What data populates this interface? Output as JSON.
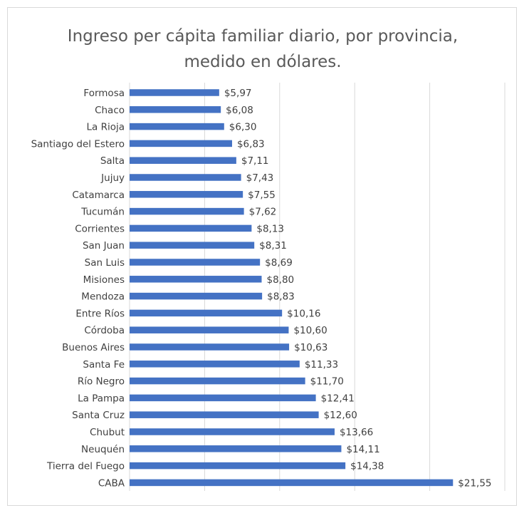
{
  "chart_data": {
    "type": "bar",
    "orientation": "horizontal",
    "title_lines": [
      "Ingreso per cápita familiar diario, por provincia,",
      "medido en dólares."
    ],
    "xlabel": "",
    "ylabel": "",
    "xlim": [
      0,
      25
    ],
    "grid": true,
    "legend": "none",
    "bar_color": "#4472c4",
    "value_prefix": "$",
    "decimal_separator": ",",
    "categories": [
      "Formosa",
      "Chaco",
      "La Rioja",
      "Santiago del Estero",
      "Salta",
      "Jujuy",
      "Catamarca",
      "Tucumán",
      "Corrientes",
      "San Juan",
      "San Luis",
      "Misiones",
      "Mendoza",
      "Entre Ríos",
      "Córdoba",
      "Buenos Aires",
      "Santa Fe",
      "Río Negro",
      "La Pampa",
      "Santa Cruz",
      "Chubut",
      "Neuquén",
      "Tierra del Fuego",
      "CABA"
    ],
    "values": [
      5.97,
      6.08,
      6.3,
      6.83,
      7.11,
      7.43,
      7.55,
      7.62,
      8.13,
      8.31,
      8.69,
      8.8,
      8.83,
      10.16,
      10.6,
      10.63,
      11.33,
      11.7,
      12.41,
      12.6,
      13.66,
      14.11,
      14.38,
      21.55
    ],
    "value_labels": [
      "$5,97",
      "$6,08",
      "$6,30",
      "$6,83",
      "$7,11",
      "$7,43",
      "$7,55",
      "$7,62",
      "$8,13",
      "$8,31",
      "$8,69",
      "$8,80",
      "$8,83",
      "$10,16",
      "$10,60",
      "$10,63",
      "$11,33",
      "$11,70",
      "$12,41",
      "$12,60",
      "$13,66",
      "$14,11",
      "$14,38",
      "$21,55"
    ]
  }
}
